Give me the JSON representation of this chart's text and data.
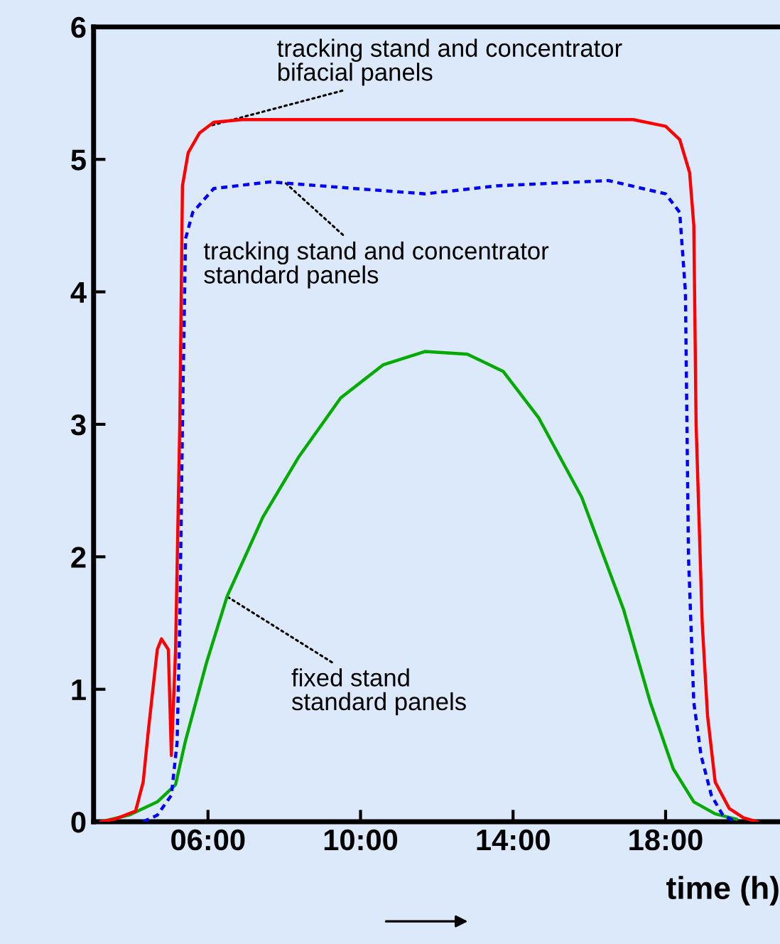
{
  "chart_data": {
    "type": "line",
    "xlabel": "time (h)",
    "xlim": [
      3,
      21
    ],
    "ylim": [
      0,
      6
    ],
    "xticks": [
      {
        "value": 6,
        "label": "06:00"
      },
      {
        "value": 10,
        "label": "10:00"
      },
      {
        "value": 14,
        "label": "14:00"
      },
      {
        "value": 18,
        "label": "18:00"
      }
    ],
    "yticks": [
      0,
      1,
      2,
      3,
      4,
      5,
      6
    ],
    "grid": false,
    "legend": false,
    "marker": "none",
    "series": [
      {
        "color": "#ff0000",
        "line_style": "solid",
        "x": [
          3.2,
          3.56,
          4.1,
          4.3,
          4.44,
          4.67,
          4.78,
          4.96,
          5.04,
          5.15,
          5.26,
          5.33,
          5.48,
          5.78,
          6.15,
          6.9,
          10,
          14,
          17.15,
          18,
          18.37,
          18.63,
          18.74,
          18.8,
          18.96,
          19.1,
          19.3,
          19.67,
          20.04,
          20.4
        ],
        "values": [
          0,
          0.02,
          0.08,
          0.3,
          0.7,
          1.3,
          1.38,
          1.3,
          0.5,
          1.3,
          3.0,
          4.8,
          5.05,
          5.2,
          5.28,
          5.3,
          5.3,
          5.3,
          5.3,
          5.25,
          5.15,
          4.9,
          4.5,
          3.0,
          1.5,
          0.8,
          0.3,
          0.1,
          0.03,
          0
        ]
      },
      {
        "color": "#0000ff",
        "line_style": "dashed",
        "x": [
          4.3,
          4.67,
          5.04,
          5.19,
          5.26,
          5.33,
          5.41,
          5.6,
          6.15,
          7.63,
          9.85,
          11.7,
          13.56,
          16.5,
          18,
          18.37,
          18.52,
          18.6,
          18.74,
          18.93,
          19.2,
          19.5,
          19.85
        ],
        "values": [
          0,
          0.05,
          0.2,
          0.6,
          1.5,
          3.0,
          4.4,
          4.6,
          4.78,
          4.83,
          4.78,
          4.74,
          4.8,
          4.84,
          4.74,
          4.6,
          4.0,
          2.0,
          0.9,
          0.5,
          0.2,
          0.05,
          0
        ]
      },
      {
        "color": "#00aa00",
        "line_style": "solid",
        "x": [
          3.2,
          3.93,
          4.67,
          5.15,
          5.4,
          5.96,
          6.5,
          7.44,
          8.37,
          9.48,
          10.6,
          11.7,
          12.8,
          13.74,
          14.67,
          15.8,
          16.9,
          17.6,
          18.2,
          18.74,
          19.3,
          19.85
        ],
        "values": [
          0,
          0.05,
          0.15,
          0.28,
          0.6,
          1.2,
          1.7,
          2.3,
          2.75,
          3.2,
          3.45,
          3.55,
          3.53,
          3.4,
          3.05,
          2.45,
          1.6,
          0.9,
          0.4,
          0.15,
          0.06,
          0.02
        ]
      }
    ],
    "annotations": [
      {
        "text": "tracking stand and concentrator\nbifacial panels",
        "x": 6.0,
        "y": 5.25
      },
      {
        "text": "tracking stand and concentrator\nstandard panels",
        "x": 8.0,
        "y": 4.83
      },
      {
        "text": "fixed stand\nstandard panels",
        "x": 6.5,
        "y": 1.7
      }
    ]
  }
}
